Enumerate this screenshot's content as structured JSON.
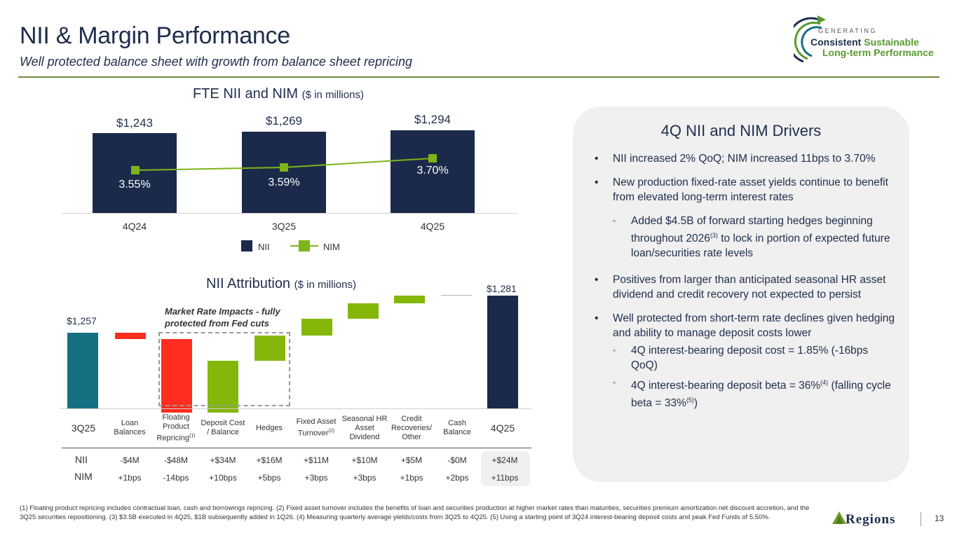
{
  "header": {
    "title": "NII & Margin Performance",
    "subtitle": "Well protected balance sheet with growth from balance sheet repricing"
  },
  "logo": {
    "generating": "GENERATING",
    "line1_a": "Consistent",
    "line1_b": "Sustainable",
    "line2": "Long-term Performance"
  },
  "chart1": {
    "title": "FTE NII and NIM",
    "unit": "($ in millions)",
    "legend_nii": "NII",
    "legend_nim": "NIM"
  },
  "chart2": {
    "title": "NII Attribution",
    "unit": "($ in millions)",
    "annotation": "Market Rate Impacts - fully protected from Fed cuts"
  },
  "chart_data": [
    {
      "type": "bar",
      "title": "FTE NII and NIM ($ in millions)",
      "categories": [
        "4Q24",
        "3Q25",
        "4Q25"
      ],
      "value_labels": [
        "$1,243",
        "$1,269",
        "$1,294"
      ],
      "nim_labels": [
        "3.55%",
        "3.59%",
        "3.70%"
      ],
      "series": [
        {
          "name": "NII",
          "type": "bar",
          "values": [
            1243,
            1269,
            1294
          ]
        },
        {
          "name": "NIM",
          "type": "line",
          "values": [
            3.55,
            3.59,
            3.7
          ]
        }
      ],
      "colors": {
        "nii": "#1b2a4a",
        "nim": "#7cb518"
      }
    },
    {
      "type": "waterfall",
      "title": "NII Attribution ($ in millions)",
      "start": {
        "label": "3Q25",
        "value": 1257,
        "display": "$1,257"
      },
      "end": {
        "label": "4Q25",
        "value": 1281,
        "display": "$1,281"
      },
      "steps": [
        {
          "label": "Loan Balances",
          "delta": -4
        },
        {
          "label": "Floating Product Repricing",
          "sup": "(1)",
          "delta": -48
        },
        {
          "label": "Deposit Cost / Balance",
          "delta": 34
        },
        {
          "label": "Hedges",
          "delta": 16
        },
        {
          "label": "Fixed Asset Turnover",
          "sup": "(2)",
          "delta": 11
        },
        {
          "label": "Seasonal HR Asset Dividend",
          "delta": 10
        },
        {
          "label": "Credit Recoveries/ Other",
          "delta": 5
        },
        {
          "label": "Cash Balance",
          "delta": 0
        }
      ],
      "colors": {
        "start": "#157082",
        "end": "#1b2a4a",
        "neg": "#ff2d1f",
        "pos": "#84b70a",
        "zero": "#b0b0b0"
      }
    }
  ],
  "table": {
    "row_nii_label": "NII",
    "row_nim_label": "NIM",
    "nii": [
      "-$4M",
      "-$48M",
      "+$34M",
      "+$16M",
      "+$11M",
      "+$10M",
      "+$5M",
      "-$0M",
      "+$24M"
    ],
    "nim": [
      "+1bps",
      "-14bps",
      "+10bps",
      "+5bps",
      "+3bps",
      "+3bps",
      "+1bps",
      "+2bps",
      "+11bps"
    ]
  },
  "drivers": {
    "title": "4Q NII and NIM Drivers",
    "b1": "NII increased 2% QoQ; NIM increased 11bps to 3.70%",
    "b2": "New production fixed-rate asset yields continue to benefit from elevated long-term interest rates",
    "b2s1_a": "Added $4.5B of forward starting hedges beginning throughout 2026",
    "b2s1_sup": "(3)",
    "b2s1_b": " to lock in portion of expected future loan/securities rate levels",
    "b3": "Positives from larger than anticipated seasonal HR asset dividend and credit recovery not expected to persist",
    "b4": "Well protected from short-term rate declines given hedging and ability to manage deposit costs lower",
    "b4s1": "4Q interest-bearing deposit cost = 1.85% (-16bps QoQ)",
    "b4s2_a": "4Q interest-bearing deposit beta = 36%",
    "b4s2_sup1": "(4)",
    "b4s2_b": " (falling cycle beta = 33%",
    "b4s2_sup2": "(5)",
    "b4s2_c": ")"
  },
  "footnote": "(1) Floating product repricing includes contractual loan, cash and borrowings repricing.  (2) Fixed asset turnover includes the benefits of loan and securities production at higher market rates than maturities, securities premium amortization net discount accretion, and the 3Q25 securities repositioning.  (3) $3.5B executed in 4Q25, $1B subsequently added in 1Q26. (4) Measuring quarterly average yields/costs from 3Q25 to 4Q25.  (5) Using a starting point of 3Q24 interest-bearing deposit costs and peak Fed Funds of 5.50%.",
  "footer": {
    "brand": "Regions",
    "page": "13"
  }
}
